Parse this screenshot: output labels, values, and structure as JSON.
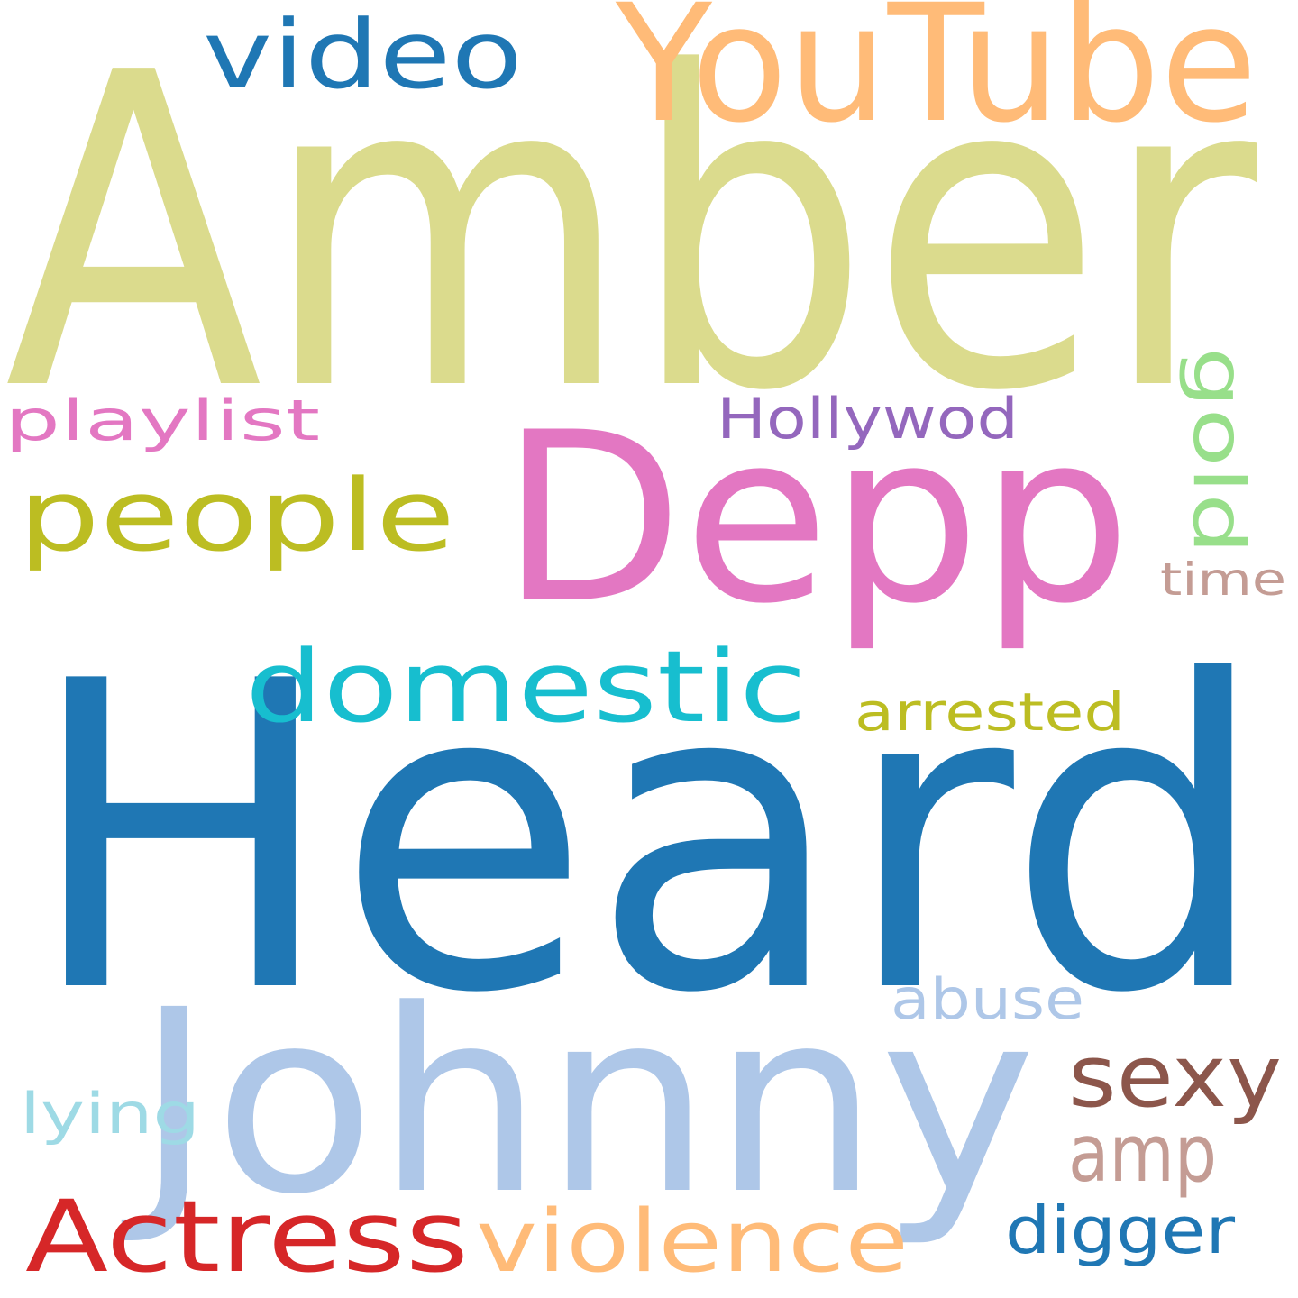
{
  "words": [
    {
      "text": "Amber",
      "color": "#dbdb8d"
    },
    {
      "text": "Heard",
      "color": "#1f77b4"
    },
    {
      "text": "Johnny",
      "color": "#aec7e8"
    },
    {
      "text": "Depp",
      "color": "#e377c2"
    },
    {
      "text": "YouTube",
      "color": "#ffbb78"
    },
    {
      "text": "video",
      "color": "#1f77b4"
    },
    {
      "text": "people",
      "color": "#bcbd22"
    },
    {
      "text": "playlist",
      "color": "#e377c2"
    },
    {
      "text": "Hollywod",
      "color": "#9467bd"
    },
    {
      "text": "gold",
      "color": "#98df8a",
      "orientation": "vertical"
    },
    {
      "text": "time",
      "color": "#c49c94"
    },
    {
      "text": "domestic",
      "color": "#17becf"
    },
    {
      "text": "arrested",
      "color": "#bcbd22"
    },
    {
      "text": "abuse",
      "color": "#aec7e8"
    },
    {
      "text": "sexy",
      "color": "#8c564b"
    },
    {
      "text": "lying",
      "color": "#9edae5"
    },
    {
      "text": "amp",
      "color": "#c49c94"
    },
    {
      "text": "Actress",
      "color": "#d62728"
    },
    {
      "text": "violence",
      "color": "#ffbb78"
    },
    {
      "text": "digger",
      "color": "#1f77b4"
    }
  ]
}
